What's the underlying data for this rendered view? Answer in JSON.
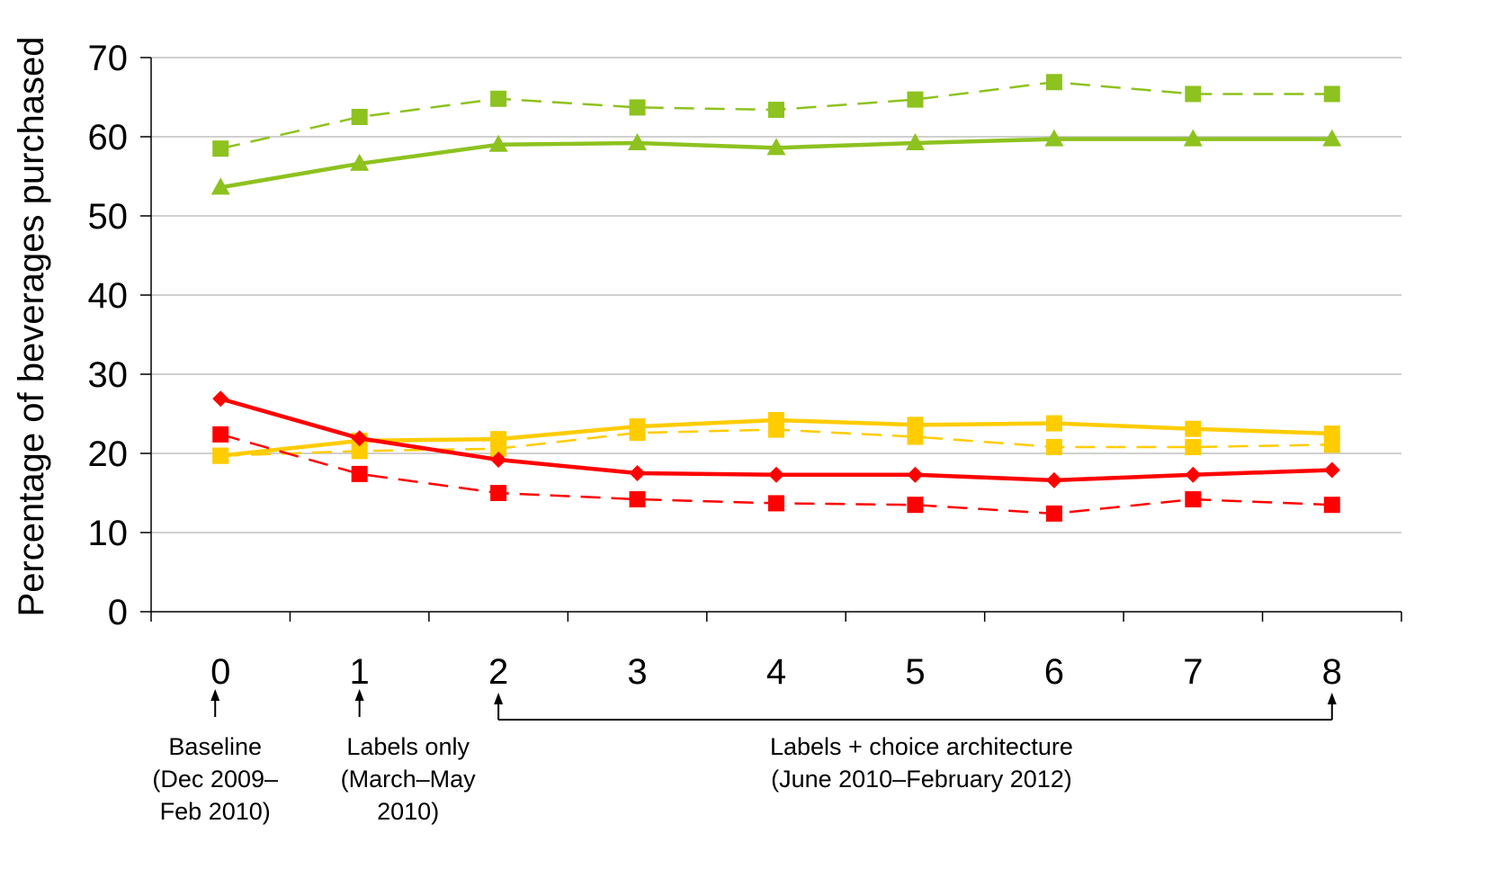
{
  "chart_data": {
    "type": "line",
    "title": "",
    "xlabel": "",
    "ylabel": "Percentage of beverages purchased",
    "ylim": [
      0,
      70
    ],
    "yticks": [
      0,
      10,
      20,
      30,
      40,
      50,
      60,
      70
    ],
    "x": [
      0,
      1,
      2,
      3,
      4,
      5,
      6,
      7,
      8
    ],
    "x_tick_labels": [
      "0",
      "1",
      "2",
      "3",
      "4",
      "5",
      "6",
      "7",
      "8"
    ],
    "grid": "horizontal",
    "legend": "none",
    "series": [
      {
        "color": "#8DC21F",
        "line": "dashed",
        "marker": "square",
        "values": [
          58.5,
          62.5,
          64.8,
          63.7,
          63.4,
          64.7,
          66.9,
          65.4,
          65.4
        ]
      },
      {
        "color": "#8DC21F",
        "line": "solid",
        "marker": "triangle",
        "values": [
          53.6,
          56.6,
          59.0,
          59.2,
          58.6,
          59.2,
          59.7,
          59.7,
          59.7
        ]
      },
      {
        "color": "#FFCC00",
        "line": "solid",
        "marker": "square",
        "values": [
          19.7,
          21.6,
          21.8,
          23.4,
          24.2,
          23.6,
          23.8,
          23.1,
          22.5
        ]
      },
      {
        "color": "#FFCC00",
        "line": "dashed",
        "marker": "square",
        "values": [
          19.7,
          20.3,
          20.6,
          22.6,
          23.0,
          22.1,
          20.8,
          20.8,
          21.1
        ]
      },
      {
        "color": "#FF0000",
        "line": "solid",
        "marker": "diamond",
        "values": [
          26.9,
          21.9,
          19.2,
          17.5,
          17.3,
          17.3,
          16.6,
          17.3,
          17.9
        ]
      },
      {
        "color": "#FF0000",
        "line": "dashed",
        "marker": "square",
        "values": [
          22.4,
          17.4,
          15.0,
          14.2,
          13.7,
          13.5,
          12.4,
          14.2,
          13.5
        ]
      }
    ],
    "annotations": {
      "baseline": {
        "x": 0,
        "lines": [
          "Baseline",
          "(Dec 2009–",
          "Feb 2010)"
        ]
      },
      "labels_only": {
        "x": 1,
        "lines": [
          "Labels only",
          "(March–May",
          "2010)"
        ]
      },
      "choice_architecture": {
        "x_range": [
          2,
          8
        ],
        "lines": [
          "Labels + choice architecture",
          "(June 2010–February 2012)"
        ]
      }
    }
  }
}
